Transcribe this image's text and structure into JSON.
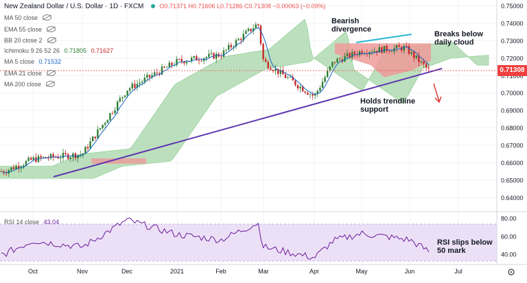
{
  "header": {
    "title": "New Zealand Dollar / U.S. Dollar · 1D · FXCM",
    "ohlc": "O0.71371 H0.71606 L0.71286 C0.71308 −0.00063 (−0.09%)",
    "indicators": [
      {
        "label": "MA 50 close",
        "value": ""
      },
      {
        "label": "EMA 55 close",
        "value": ""
      },
      {
        "label": "BB 20 close 2",
        "value": ""
      },
      {
        "label": "Ichimoku 9 26 52 26",
        "value": "0.71805",
        "value2": "0.71627"
      },
      {
        "label": "MA 5 close",
        "value": "0.71532"
      },
      {
        "label": "EMA 21 close",
        "value": ""
      },
      {
        "label": "MA 200 close",
        "value": ""
      }
    ]
  },
  "annotations": {
    "bearish_divergence": "Bearish\ndivergence",
    "breaks_cloud": "Breaks below\ndaily cloud",
    "holds_trendline": "Holds trendline\nsupport",
    "rsi_slips": "RSI slips below\n50 mark"
  },
  "price_tag": "0.71308",
  "rsi_label": "RSI 14 close",
  "rsi_value": "43.04",
  "colors": {
    "up": "#26a69a",
    "down": "#ef5350",
    "candle_up": "#2e7d32",
    "candle_down": "#c62828",
    "cloud_green": "#a5d6a7",
    "cloud_red": "#ef9a9a",
    "trendline": "#5e35b1",
    "divergence": "#29b6d6",
    "rsi_line": "#6a1b9a",
    "rsi_band": "#ece0f7"
  },
  "chart_data": [
    {
      "type": "candlestick",
      "title": "New Zealand Dollar / U.S. Dollar · 1D · FXCM",
      "x": [
        "Oct",
        "Nov",
        "Dec",
        "2021",
        "Feb",
        "Mar",
        "Apr",
        "May",
        "Jun",
        "Jul"
      ],
      "y_ticks": [
        "0.75000",
        "0.74000",
        "0.73000",
        "0.72000",
        "0.71000",
        "0.70000",
        "0.69000",
        "0.68000",
        "0.67000",
        "0.66000",
        "0.65000",
        "0.64000"
      ],
      "ylim": [
        0.637,
        0.751
      ],
      "last_close": 0.71308,
      "key_points": [
        {
          "x": "late Sep",
          "y": 0.655
        },
        {
          "x": "Oct",
          "y": 0.662
        },
        {
          "x": "Nov",
          "y": 0.665
        },
        {
          "x": "Dec",
          "y": 0.702
        },
        {
          "x": "2021",
          "y": 0.718
        },
        {
          "x": "Feb",
          "y": 0.722
        },
        {
          "x": "late Feb",
          "y": 0.74
        },
        {
          "x": "Mar",
          "y": 0.718
        },
        {
          "x": "Apr",
          "y": 0.698
        },
        {
          "x": "late Apr",
          "y": 0.718
        },
        {
          "x": "May",
          "y": 0.724
        },
        {
          "x": "early Jun",
          "y": 0.726
        },
        {
          "x": "mid Jun",
          "y": 0.713
        }
      ]
    },
    {
      "type": "line",
      "title": "RSI 14 close",
      "y_ticks": [
        "80.00",
        "60.00",
        "40.00"
      ],
      "ylim": [
        30,
        82
      ],
      "last_value": 43.04,
      "key_points": [
        {
          "x": "late Sep",
          "y": 40
        },
        {
          "x": "Oct",
          "y": 55
        },
        {
          "x": "Nov",
          "y": 48
        },
        {
          "x": "Dec",
          "y": 78
        },
        {
          "x": "2021",
          "y": 62
        },
        {
          "x": "Feb",
          "y": 56
        },
        {
          "x": "late Feb",
          "y": 75
        },
        {
          "x": "Mar",
          "y": 48
        },
        {
          "x": "Apr",
          "y": 36
        },
        {
          "x": "late Apr",
          "y": 55
        },
        {
          "x": "May",
          "y": 63
        },
        {
          "x": "Jun",
          "y": 56
        },
        {
          "x": "mid Jun",
          "y": 43
        }
      ]
    }
  ]
}
